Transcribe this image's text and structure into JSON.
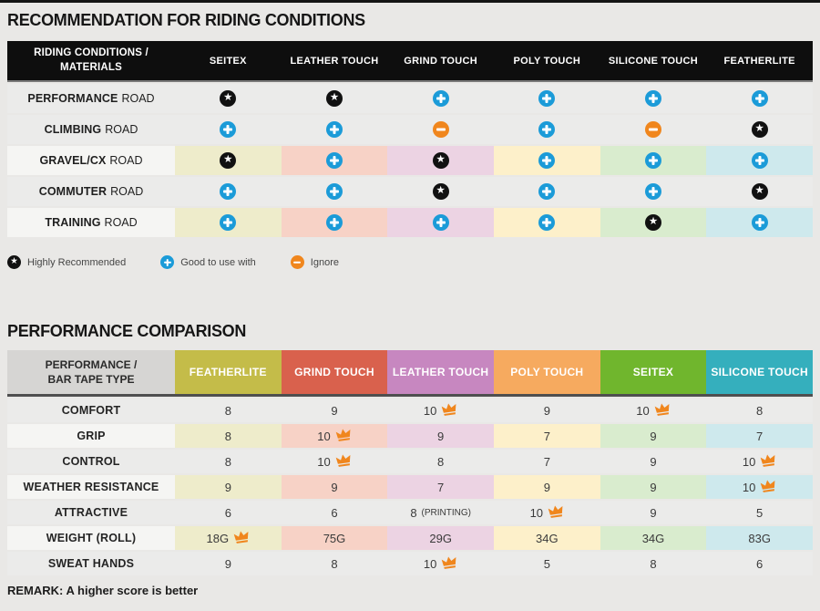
{
  "page": {
    "background": "#e9e8e6",
    "top_bar_color": "#141414"
  },
  "icons": {
    "star": {
      "meaning": "Highly Recommended",
      "fg": "#ffffff",
      "bg": "#111111"
    },
    "plus": {
      "meaning": "Good to use with",
      "fg": "#ffffff",
      "bg": "#1b9bd8"
    },
    "minus": {
      "meaning": "Ignore",
      "fg": "#ffffff",
      "bg": "#f0861d"
    },
    "crown": {
      "meaning": "best score",
      "color": "#f0861d"
    }
  },
  "section1": {
    "title": "RECOMMENDATION FOR RIDING CONDITIONS",
    "table": {
      "corner_header": [
        "RIDING CONDITIONS /",
        "MATERIALS"
      ],
      "header_bg": "#0e0e0e",
      "columns": [
        "SEITEX",
        "LEATHER TOUCH",
        "GRIND TOUCH",
        "POLY TOUCH",
        "SILICONE TOUCH",
        "FEATHERLITE"
      ],
      "column_tint_colors": [
        "#eeeccb",
        "#f7d2c6",
        "#ecd3e3",
        "#fdf0ca",
        "#d9ecce",
        "#cee9ed"
      ],
      "rows": [
        {
          "label_strong": "PERFORMANCE",
          "label_rest": "ROAD",
          "tinted": false,
          "cells": [
            "star",
            "star",
            "plus",
            "plus",
            "plus",
            "plus"
          ]
        },
        {
          "label_strong": "CLIMBING",
          "label_rest": "ROAD",
          "tinted": false,
          "cells": [
            "plus",
            "plus",
            "minus",
            "plus",
            "minus",
            "star"
          ]
        },
        {
          "label_strong": "GRAVEL/CX",
          "label_rest": "ROAD",
          "tinted": true,
          "cells": [
            "star",
            "plus",
            "star",
            "plus",
            "plus",
            "plus"
          ]
        },
        {
          "label_strong": "COMMUTER",
          "label_rest": "ROAD",
          "tinted": false,
          "cells": [
            "plus",
            "plus",
            "star",
            "plus",
            "plus",
            "star"
          ]
        },
        {
          "label_strong": "TRAINING",
          "label_rest": "ROAD",
          "tinted": true,
          "cells": [
            "plus",
            "plus",
            "plus",
            "plus",
            "star",
            "plus"
          ]
        }
      ]
    },
    "legend": [
      {
        "icon": "star",
        "label": "Highly Recommended"
      },
      {
        "icon": "plus",
        "label": "Good to use with"
      },
      {
        "icon": "minus",
        "label": "Ignore"
      }
    ]
  },
  "section2": {
    "title": "PERFORMANCE COMPARISON",
    "table": {
      "corner_header": [
        "PERFORMANCE /",
        "BAR TAPE TYPE"
      ],
      "corner_bg": "#d6d5d3",
      "columns": [
        {
          "label": "FEATHERLITE",
          "color": "#c4bc49"
        },
        {
          "label": "GRIND TOUCH",
          "color": "#d9614d"
        },
        {
          "label": "LEATHER TOUCH",
          "color": "#c787c0"
        },
        {
          "label": "POLY TOUCH",
          "color": "#f6aa5f"
        },
        {
          "label": "SEITEX",
          "color": "#70b62d"
        },
        {
          "label": "SILICONE TOUCH",
          "color": "#35afbd"
        }
      ],
      "column_tint_colors": [
        "#eeeccb",
        "#f7d2c6",
        "#ecd3e3",
        "#fdf0ca",
        "#d9ecce",
        "#cee9ed"
      ],
      "rows": [
        {
          "label": "COMFORT",
          "tinted": false,
          "cells": [
            {
              "v": "8"
            },
            {
              "v": "9"
            },
            {
              "v": "10",
              "crown": true
            },
            {
              "v": "9"
            },
            {
              "v": "10",
              "crown": true
            },
            {
              "v": "8"
            }
          ]
        },
        {
          "label": "GRIP",
          "tinted": true,
          "cells": [
            {
              "v": "8"
            },
            {
              "v": "10",
              "crown": true
            },
            {
              "v": "9"
            },
            {
              "v": "7"
            },
            {
              "v": "9"
            },
            {
              "v": "7"
            }
          ]
        },
        {
          "label": "CONTROL",
          "tinted": false,
          "cells": [
            {
              "v": "8"
            },
            {
              "v": "10",
              "crown": true
            },
            {
              "v": "8"
            },
            {
              "v": "7"
            },
            {
              "v": "9"
            },
            {
              "v": "10",
              "crown": true
            }
          ]
        },
        {
          "label": "WEATHER RESISTANCE",
          "tinted": true,
          "cells": [
            {
              "v": "9"
            },
            {
              "v": "9"
            },
            {
              "v": "7"
            },
            {
              "v": "9"
            },
            {
              "v": "9"
            },
            {
              "v": "10",
              "crown": true
            }
          ]
        },
        {
          "label": "ATTRACTIVE",
          "tinted": false,
          "cells": [
            {
              "v": "6"
            },
            {
              "v": "6"
            },
            {
              "v": "8",
              "suffix": "(PRINTING)"
            },
            {
              "v": "10",
              "crown": true
            },
            {
              "v": "9"
            },
            {
              "v": "5"
            }
          ]
        },
        {
          "label": "WEIGHT (ROLL)",
          "tinted": true,
          "cells": [
            {
              "v": "18G",
              "crown": true
            },
            {
              "v": "75G"
            },
            {
              "v": "29G"
            },
            {
              "v": "34G"
            },
            {
              "v": "34G"
            },
            {
              "v": "83G"
            }
          ]
        },
        {
          "label": "SWEAT HANDS",
          "tinted": false,
          "cells": [
            {
              "v": "9"
            },
            {
              "v": "8"
            },
            {
              "v": "10",
              "crown": true
            },
            {
              "v": "5"
            },
            {
              "v": "8"
            },
            {
              "v": "6"
            }
          ]
        }
      ]
    }
  },
  "remark": "REMARK: A higher score is better"
}
